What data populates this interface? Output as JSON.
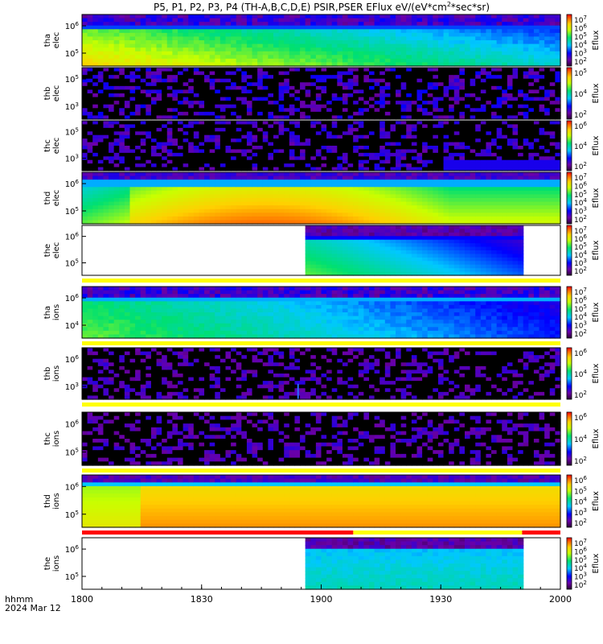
{
  "title": "P5, P1, P2, P3, P4 (TH-A,B,C,D,E) PSIR,PSER EFlux eV/(eV*cm",
  "title_sup": "2",
  "title_end": "*sec*sr)",
  "x_axis": {
    "ticks": [
      "1800",
      "1830",
      "1900",
      "1930",
      "2000"
    ],
    "footer_line1": "hhmm",
    "footer_line2": "2024 Mar 12"
  },
  "chart_data": {
    "type": "heatmap",
    "x_range_hhmm": [
      "1800",
      "2000"
    ],
    "panels": [
      {
        "probe": "tha",
        "species": "elec",
        "ylabel": "tha\nelec",
        "yticks": [
          "10^6",
          "10^5"
        ],
        "colorbar": [
          "10^7",
          "10^6",
          "10^5",
          "10^4",
          "10^3",
          "10^2"
        ],
        "cbar_label": "Eflux",
        "coverage": [
          0,
          1
        ],
        "character": "high flux orange-yellow at low energy, fading to green/cyan later; blue-purple band at top"
      },
      {
        "probe": "thb",
        "species": "elec",
        "ylabel": "thb\nelec",
        "yticks": [
          "10^5",
          "10^3"
        ],
        "colorbar": [
          "10^5",
          "10^4",
          "10^2"
        ],
        "cbar_label": "Eflux",
        "coverage": [
          0,
          1
        ],
        "character": "sparse noise, dark purple"
      },
      {
        "probe": "thc",
        "species": "elec",
        "ylabel": "thc\nelec",
        "yticks": [
          "10^5",
          "10^3"
        ],
        "colorbar": [
          "10^6",
          "10^4",
          "10^2"
        ],
        "cbar_label": "Eflux",
        "coverage": [
          0,
          1
        ],
        "character": "sparse noise, dark purple with faint blue patch late"
      },
      {
        "probe": "thd",
        "species": "elec",
        "ylabel": "thd\nelec",
        "yticks": [
          "10^6",
          "10^5"
        ],
        "colorbar": [
          "10^7",
          "10^6",
          "10^5",
          "10^4",
          "10^3",
          "10^2"
        ],
        "cbar_label": "Eflux",
        "coverage": [
          0,
          1
        ],
        "character": "strong orange-red flux centered mid-period"
      },
      {
        "probe": "the",
        "species": "elec",
        "ylabel": "the\nelec",
        "yticks": [
          "10^6",
          "10^5"
        ],
        "colorbar": [
          "10^7",
          "10^6",
          "10^5",
          "10^4",
          "10^3",
          "10^2"
        ],
        "cbar_label": "Eflux",
        "coverage": [
          0.47,
          0.92
        ],
        "character": "data only between ~1856 and ~1950"
      },
      {
        "probe": "tha",
        "species": "ions",
        "ylabel": "tha\nions",
        "yticks": [
          "10^6",
          "10^4"
        ],
        "colorbar": [
          "10^7",
          "10^6",
          "10^5",
          "10^4",
          "10^3",
          "10^2"
        ],
        "cbar_label": "Eflux",
        "coverage": [
          0,
          1
        ],
        "character": "green flux early, shifting to blue later"
      },
      {
        "probe": "thb",
        "species": "ions",
        "ylabel": "thb\nions",
        "yticks": [
          "10^6",
          "10^3"
        ],
        "colorbar": [
          "10^6",
          "10^4",
          "10^2"
        ],
        "cbar_label": "Eflux",
        "coverage": [
          0,
          1
        ],
        "character": "sparse noise with single blue spike near 1845"
      },
      {
        "probe": "thc",
        "species": "ions",
        "ylabel": "thc\nions",
        "yticks": [
          "10^6",
          "10^5"
        ],
        "colorbar": [
          "10^6",
          "10^4",
          "10^2"
        ],
        "cbar_label": "Eflux",
        "coverage": [
          0,
          1
        ],
        "character": "sparse noise, dark purple"
      },
      {
        "probe": "thd",
        "species": "ions",
        "ylabel": "thd\nions",
        "yticks": [
          "10^6",
          "10^5"
        ],
        "colorbar": [
          "10^6",
          "10^5",
          "10^4",
          "10^3",
          "10^2"
        ],
        "cbar_label": "Eflux",
        "coverage": [
          0,
          1
        ],
        "character": "strong orange-red flux across period"
      },
      {
        "probe": "the",
        "species": "ions",
        "ylabel": "the\nions",
        "yticks": [
          "10^6",
          "10^5"
        ],
        "colorbar": [
          "10^7",
          "10^6",
          "10^5",
          "10^4",
          "10^3",
          "10^2"
        ],
        "cbar_label": "Eflux",
        "coverage": [
          0.47,
          0.92
        ],
        "character": "data only between ~1856 and ~1950, cyan-green"
      }
    ],
    "mode_bars": [
      {
        "after_panel": 4,
        "segments": [
          {
            "from": 0,
            "to": 1,
            "color": "#ffff00"
          }
        ]
      },
      {
        "after_panel": 5,
        "segments": [
          {
            "from": 0,
            "to": 1,
            "color": "#ffff00"
          }
        ]
      },
      {
        "after_panel": 6,
        "segments": [
          {
            "from": 0,
            "to": 1,
            "color": "#ffff00"
          }
        ]
      },
      {
        "after_panel": 7,
        "segments": [
          {
            "from": 0,
            "to": 1,
            "color": "#ffff00"
          }
        ]
      },
      {
        "after_panel": 8,
        "segments": [
          {
            "from": 0,
            "to": 0.567,
            "color": "#ff0000"
          },
          {
            "from": 0.567,
            "to": 0.92,
            "color": "#ffff00"
          },
          {
            "from": 0.92,
            "to": 1,
            "color": "#ff0000"
          }
        ]
      }
    ]
  }
}
